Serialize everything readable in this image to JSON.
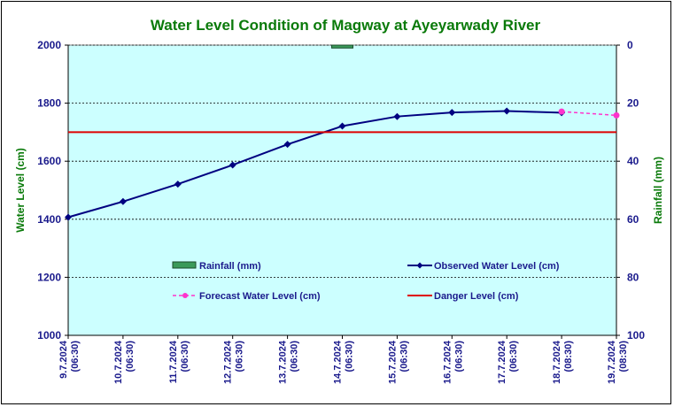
{
  "chart_data": {
    "type": "line",
    "title": "Water Level Condition of Magway at Ayeyarwady River",
    "ylabel": "Water Level (cm)",
    "y2label": "Rainfall (mm)",
    "ylim": [
      1000,
      2000
    ],
    "y2lim": [
      0,
      100
    ],
    "y2_reversed": true,
    "yticks": [
      "1000",
      "1200",
      "1400",
      "1600",
      "1800",
      "2000"
    ],
    "y2ticks": [
      "0",
      "20",
      "40",
      "60",
      "80",
      "100"
    ],
    "categories": [
      "9.7.2024\n(06:30)",
      "10.7.2024\n(06:30)",
      "11.7.2024\n(06:30)",
      "12.7.2024\n(06:30)",
      "13.7.2024\n(06:30)",
      "14.7.2024\n(06:30)",
      "15.7.2024\n(06:30)",
      "16.7.2024\n(06:30)",
      "17.7.2024\n(06:30)",
      "18.7.2024\n(08:30)",
      "19.7.2024\n(08:30)"
    ],
    "series": [
      {
        "name": "Rainfall (mm)",
        "kind": "bar",
        "axis": "right",
        "color": "#3a9a5a",
        "values": [
          null,
          null,
          null,
          null,
          null,
          1,
          null,
          null,
          null,
          null,
          null
        ]
      },
      {
        "name": "Observed Water Level (cm)",
        "kind": "line",
        "axis": "left",
        "color": "#000080",
        "values": [
          1407,
          1461,
          1521,
          1587,
          1658,
          1721,
          1754,
          1768,
          1773,
          1767,
          null
        ]
      },
      {
        "name": "Forecast Water Level (cm)",
        "kind": "line",
        "axis": "left",
        "color": "#ff33cc",
        "dashed": true,
        "values": [
          null,
          null,
          null,
          null,
          null,
          null,
          null,
          null,
          null,
          1771,
          1758
        ]
      },
      {
        "name": "Danger Level (cm)",
        "kind": "line",
        "axis": "left",
        "color": "#dd0000",
        "values": [
          1700,
          1700,
          1700,
          1700,
          1700,
          1700,
          1700,
          1700,
          1700,
          1700,
          1700
        ]
      }
    ],
    "grid": true,
    "legend_position": "inside-bottom",
    "plot_background": "#ccffff"
  }
}
